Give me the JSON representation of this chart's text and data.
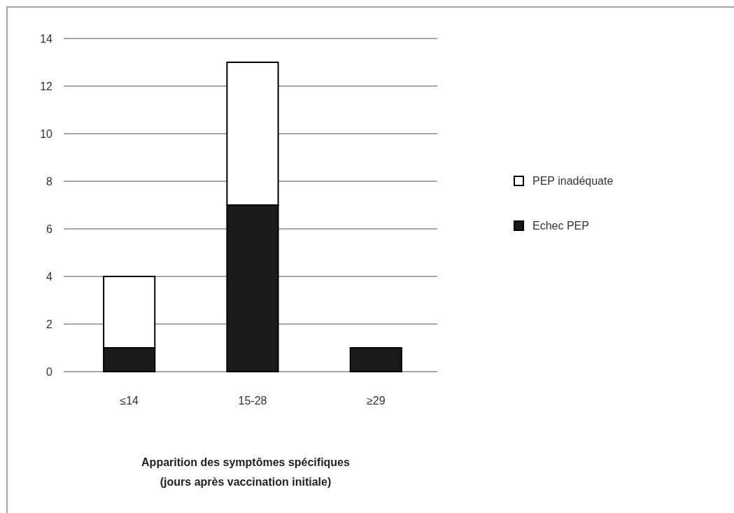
{
  "chart_data": {
    "type": "bar",
    "stacked": true,
    "categories": [
      "≤14",
      "15-28",
      "≥29"
    ],
    "series": [
      {
        "name": "Echec PEP",
        "color": "#1a1a1a",
        "values": [
          1,
          7,
          1
        ]
      },
      {
        "name": "PEP inadéquate",
        "color": "#ffffff",
        "values": [
          3,
          6,
          0
        ]
      }
    ],
    "ylim": [
      0,
      14
    ],
    "yticks": [
      0,
      2,
      4,
      6,
      8,
      10,
      12,
      14
    ],
    "grid": "y",
    "legend": "right",
    "xlabel": "Apparition des symptômes spécifiques\n(jours après vaccination initiale)"
  }
}
